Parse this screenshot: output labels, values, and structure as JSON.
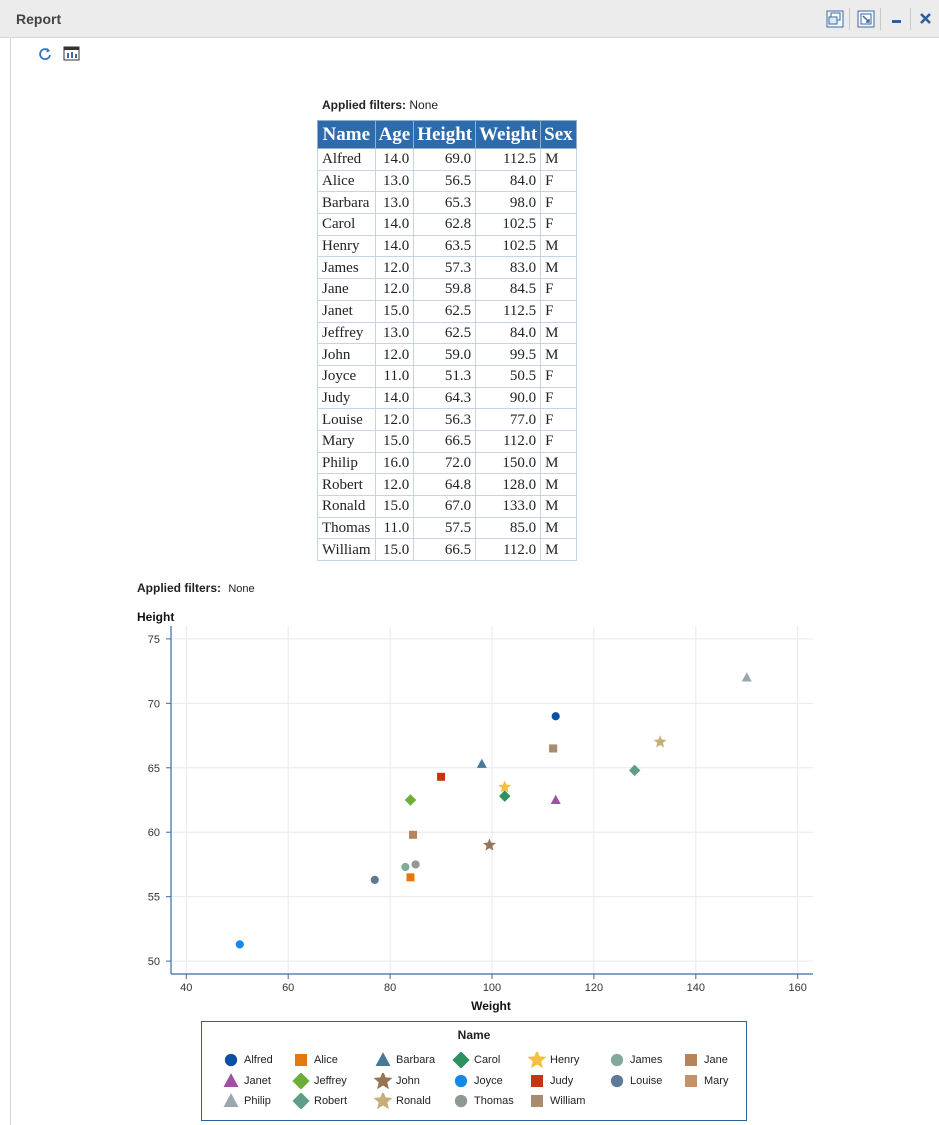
{
  "window": {
    "title": "Report"
  },
  "toolbar": {
    "refresh_icon": "refresh-icon",
    "view_icon": "view-table-icon"
  },
  "table_section": {
    "filters_label": "Applied filters:",
    "filters_value": "None"
  },
  "table": {
    "headers": [
      "Name",
      "Age",
      "Height",
      "Weight",
      "Sex"
    ],
    "rows": [
      [
        "Alfred",
        "14.0",
        "69.0",
        "112.5",
        "M"
      ],
      [
        "Alice",
        "13.0",
        "56.5",
        "84.0",
        "F"
      ],
      [
        "Barbara",
        "13.0",
        "65.3",
        "98.0",
        "F"
      ],
      [
        "Carol",
        "14.0",
        "62.8",
        "102.5",
        "F"
      ],
      [
        "Henry",
        "14.0",
        "63.5",
        "102.5",
        "M"
      ],
      [
        "James",
        "12.0",
        "57.3",
        "83.0",
        "M"
      ],
      [
        "Jane",
        "12.0",
        "59.8",
        "84.5",
        "F"
      ],
      [
        "Janet",
        "15.0",
        "62.5",
        "112.5",
        "F"
      ],
      [
        "Jeffrey",
        "13.0",
        "62.5",
        "84.0",
        "M"
      ],
      [
        "John",
        "12.0",
        "59.0",
        "99.5",
        "M"
      ],
      [
        "Joyce",
        "11.0",
        "51.3",
        "50.5",
        "F"
      ],
      [
        "Judy",
        "14.0",
        "64.3",
        "90.0",
        "F"
      ],
      [
        "Louise",
        "12.0",
        "56.3",
        "77.0",
        "F"
      ],
      [
        "Mary",
        "15.0",
        "66.5",
        "112.0",
        "F"
      ],
      [
        "Philip",
        "16.0",
        "72.0",
        "150.0",
        "M"
      ],
      [
        "Robert",
        "12.0",
        "64.8",
        "128.0",
        "M"
      ],
      [
        "Ronald",
        "15.0",
        "67.0",
        "133.0",
        "M"
      ],
      [
        "Thomas",
        "11.0",
        "57.5",
        "85.0",
        "M"
      ],
      [
        "William",
        "15.0",
        "66.5",
        "112.0",
        "M"
      ]
    ]
  },
  "chart_section": {
    "filters_label": "Applied filters:",
    "filters_value": "None"
  },
  "chart_data": {
    "type": "scatter",
    "title": "",
    "xlabel": "Weight",
    "ylabel": "Height",
    "xlim": [
      37,
      163
    ],
    "ylim": [
      49,
      76
    ],
    "xticks": [
      40,
      60,
      80,
      100,
      120,
      140,
      160
    ],
    "yticks": [
      50,
      55,
      60,
      65,
      70,
      75
    ],
    "grid": true,
    "legend_title": "Name",
    "legend_position": "bottom",
    "series": [
      {
        "name": "Alfred",
        "marker": "circle",
        "color": "#0b4fa0",
        "x": [
          112.5
        ],
        "y": [
          69.0
        ]
      },
      {
        "name": "Alice",
        "marker": "square",
        "color": "#e8770b",
        "x": [
          84.0
        ],
        "y": [
          56.5
        ]
      },
      {
        "name": "Barbara",
        "marker": "triangle",
        "color": "#4b7995",
        "x": [
          98.0
        ],
        "y": [
          65.3
        ]
      },
      {
        "name": "Carol",
        "marker": "diamond",
        "color": "#2e9160",
        "x": [
          102.5
        ],
        "y": [
          62.8
        ]
      },
      {
        "name": "Henry",
        "marker": "star",
        "color": "#f5c03f",
        "x": [
          102.5
        ],
        "y": [
          63.5
        ]
      },
      {
        "name": "James",
        "marker": "circle",
        "color": "#82a99a",
        "x": [
          83.0
        ],
        "y": [
          57.3
        ]
      },
      {
        "name": "Jane",
        "marker": "square",
        "color": "#b6845b",
        "x": [
          84.5
        ],
        "y": [
          59.8
        ]
      },
      {
        "name": "Janet",
        "marker": "triangle",
        "color": "#a04fa3",
        "x": [
          112.5
        ],
        "y": [
          62.5
        ]
      },
      {
        "name": "Jeffrey",
        "marker": "diamond",
        "color": "#6cae37",
        "x": [
          84.0
        ],
        "y": [
          62.5
        ]
      },
      {
        "name": "John",
        "marker": "star",
        "color": "#977554",
        "x": [
          99.5
        ],
        "y": [
          59.0
        ]
      },
      {
        "name": "Joyce",
        "marker": "circle",
        "color": "#1688ea",
        "x": [
          50.5
        ],
        "y": [
          51.3
        ]
      },
      {
        "name": "Judy",
        "marker": "square",
        "color": "#c8330f",
        "x": [
          90.0
        ],
        "y": [
          64.3
        ]
      },
      {
        "name": "Louise",
        "marker": "circle",
        "color": "#5e7a97",
        "x": [
          77.0
        ],
        "y": [
          56.3
        ]
      },
      {
        "name": "Mary",
        "marker": "square",
        "color": "#c4916b",
        "x": [
          112.0
        ],
        "y": [
          66.5
        ]
      },
      {
        "name": "Philip",
        "marker": "triangle",
        "color": "#9ca6ad",
        "x": [
          150.0
        ],
        "y": [
          72.0
        ]
      },
      {
        "name": "Robert",
        "marker": "diamond",
        "color": "#5e9e86",
        "x": [
          128.0
        ],
        "y": [
          64.8
        ]
      },
      {
        "name": "Ronald",
        "marker": "star",
        "color": "#c6ae78",
        "x": [
          133.0
        ],
        "y": [
          67.0
        ]
      },
      {
        "name": "Thomas",
        "marker": "circle",
        "color": "#8d9a8e",
        "x": [
          85.0
        ],
        "y": [
          57.5
        ]
      },
      {
        "name": "William",
        "marker": "square",
        "color": "#a88c72",
        "x": [
          112.0
        ],
        "y": [
          66.5
        ]
      }
    ]
  }
}
